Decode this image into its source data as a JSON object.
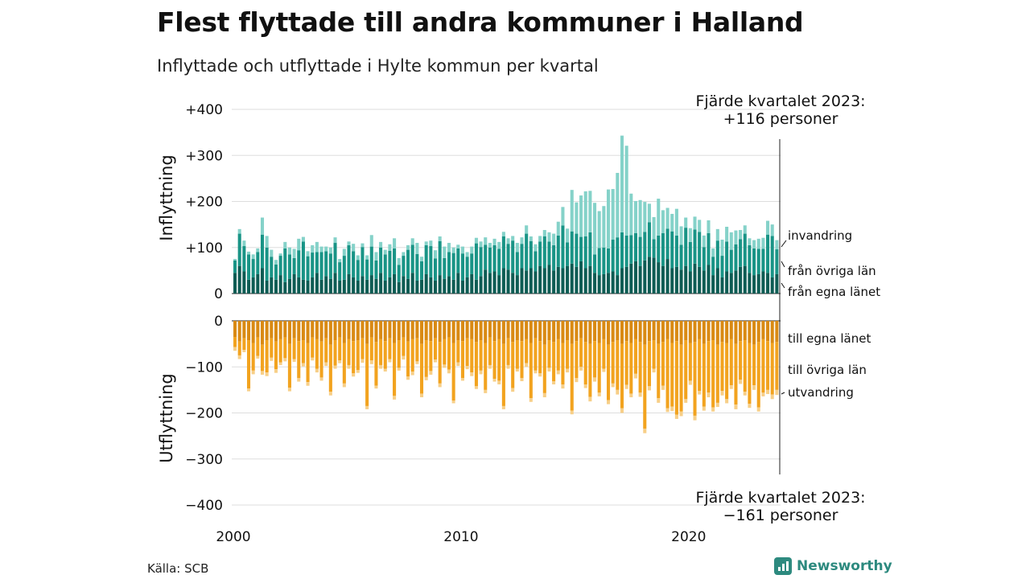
{
  "title": "Flest flyttade till andra kommuner i Halland",
  "subtitle": "Inflyttade och utflyttade i Hylte kommun per kvartal",
  "source": "Källa: SCB",
  "brand": "Newsworthy",
  "colors": {
    "in_egna": "#0e5c54",
    "in_ovriga": "#199486",
    "in_invandring": "#85d2c9",
    "ut_egna": "#d98a14",
    "ut_ovriga": "#f2a31f",
    "ut_utvandring": "#f7cf88",
    "brand": "#2d8a7f"
  },
  "chart_data": {
    "type": "bar",
    "stacked": true,
    "x_range": [
      2000,
      2024
    ],
    "x_ticks": [
      "2000",
      "2010",
      "2020"
    ],
    "y_label_top": "Inflyttning",
    "y_label_bottom": "Utflyttning",
    "y_ticks_top": [
      "+400",
      "+300",
      "+200",
      "+100",
      "0"
    ],
    "y_ticks_bottom": [
      "0",
      "−100",
      "−200",
      "−300",
      "−400"
    ],
    "ylim_top": [
      0,
      400
    ],
    "ylim_bottom": [
      -400,
      0
    ],
    "annotation_top": [
      "Fjärde kvartalet 2023:",
      "+116 personer"
    ],
    "annotation_bottom": [
      "Fjärde kvartalet 2023:",
      "−161 personer"
    ],
    "in_series": [
      {
        "name": "från egna länet",
        "key": "in_egna"
      },
      {
        "name": "från övriga län",
        "key": "in_ovriga"
      },
      {
        "name": "invandring",
        "key": "in_invandring"
      }
    ],
    "out_series": [
      {
        "name": "till egna länet",
        "key": "ut_egna"
      },
      {
        "name": "till övriga län",
        "key": "ut_ovriga"
      },
      {
        "name": "utvandring",
        "key": "ut_utvandring"
      }
    ],
    "in_egna_values": [
      45,
      60,
      48,
      30,
      35,
      42,
      55,
      28,
      35,
      30,
      40,
      25,
      32,
      42,
      35,
      30,
      28,
      35,
      45,
      30,
      38,
      32,
      45,
      28,
      30,
      42,
      35,
      28,
      38,
      30,
      40,
      32,
      45,
      28,
      35,
      42,
      25,
      38,
      32,
      45,
      28,
      30,
      42,
      35,
      28,
      40,
      32,
      38,
      30,
      45,
      28,
      35,
      42,
      30,
      38,
      52,
      45,
      48,
      40,
      55,
      52,
      45,
      40,
      55,
      50,
      55,
      48,
      60,
      55,
      62,
      50,
      58,
      55,
      60,
      65,
      58,
      70,
      55,
      60,
      45,
      40,
      42,
      45,
      48,
      40,
      55,
      58,
      65,
      70,
      60,
      72,
      80,
      78,
      68,
      60,
      75,
      55,
      58,
      52,
      60,
      48,
      65,
      58,
      50,
      62,
      40,
      55,
      35,
      48,
      45,
      50,
      58,
      60,
      45,
      40,
      42,
      48,
      45,
      35,
      42
    ],
    "in_ovriga_values": [
      27,
      70,
      55,
      55,
      40,
      48,
      73,
      72,
      45,
      33,
      42,
      73,
      53,
      35,
      59,
      83,
      53,
      54,
      45,
      60,
      54,
      55,
      65,
      40,
      52,
      63,
      57,
      45,
      63,
      44,
      62,
      40,
      55,
      57,
      58,
      56,
      37,
      44,
      63,
      61,
      58,
      40,
      63,
      68,
      48,
      74,
      45,
      52,
      58,
      53,
      59,
      45,
      45,
      79,
      63,
      54,
      55,
      57,
      57,
      69,
      56,
      70,
      50,
      53,
      80,
      59,
      44,
      53,
      69,
      51,
      55,
      68,
      93,
      51,
      70,
      72,
      53,
      69,
      73,
      40,
      59,
      58,
      53,
      69,
      82,
      78,
      68,
      62,
      61,
      63,
      62,
      75,
      40,
      58,
      71,
      66,
      80,
      68,
      54,
      83,
      64,
      74,
      76,
      51,
      69,
      40,
      60,
      47,
      65,
      50,
      57,
      60,
      70,
      60,
      58,
      55,
      49,
      83,
      90,
      54
    ],
    "in_inv_values": [
      3,
      10,
      12,
      6,
      10,
      8,
      37,
      25,
      15,
      10,
      5,
      14,
      15,
      20,
      25,
      10,
      11,
      16,
      22,
      12,
      10,
      13,
      12,
      7,
      15,
      8,
      16,
      10,
      8,
      9,
      25,
      18,
      12,
      10,
      14,
      22,
      15,
      8,
      10,
      14,
      24,
      10,
      8,
      12,
      18,
      10,
      25,
      20,
      12,
      8,
      15,
      10,
      15,
      12,
      12,
      16,
      10,
      14,
      15,
      10,
      12,
      10,
      20,
      14,
      18,
      10,
      15,
      12,
      14,
      20,
      25,
      30,
      40,
      30,
      90,
      68,
      90,
      98,
      90,
      112,
      80,
      90,
      128,
      110,
      140,
      210,
      195,
      90,
      70,
      80,
      65,
      40,
      48,
      80,
      50,
      45,
      38,
      58,
      40,
      22,
      30,
      28,
      26,
      25,
      28,
      18,
      25,
      35,
      32,
      38,
      30,
      20,
      18,
      15,
      18,
      22,
      24,
      30,
      25,
      20
    ],
    "out_egna_values": [
      35,
      45,
      38,
      42,
      48,
      36,
      52,
      42,
      38,
      45,
      40,
      36,
      50,
      38,
      44,
      42,
      48,
      36,
      40,
      45,
      38,
      52,
      42,
      36,
      48,
      40,
      44,
      42,
      38,
      50,
      36,
      46,
      40,
      44,
      38,
      48,
      42,
      36,
      45,
      40,
      38,
      50,
      42,
      44,
      38,
      46,
      40,
      36,
      48,
      42,
      44,
      38,
      40,
      46,
      42,
      48,
      36,
      44,
      40,
      50,
      38,
      46,
      42,
      44,
      40,
      48,
      38,
      44,
      52,
      42,
      46,
      40,
      48,
      42,
      50,
      44,
      38,
      46,
      50,
      44,
      48,
      40,
      52,
      46,
      42,
      50,
      44,
      48,
      40,
      46,
      52,
      44,
      42,
      50,
      46,
      40,
      48,
      44,
      52,
      42,
      48,
      46,
      40,
      50,
      44,
      42,
      52,
      46,
      48,
      40,
      50,
      44,
      42,
      48,
      52,
      46,
      40,
      44,
      48,
      46
    ],
    "out_ovriga_values": [
      22,
      30,
      25,
      105,
      60,
      40,
      57,
      70,
      42,
      60,
      50,
      45,
      95,
      45,
      80,
      50,
      85,
      44,
      64,
      78,
      52,
      102,
      55,
      50,
      88,
      56,
      70,
      65,
      45,
      135,
      50,
      95,
      56,
      60,
      45,
      115,
      60,
      40,
      76,
      70,
      50,
      108,
      80,
      65,
      46,
      90,
      55,
      70,
      125,
      48,
      80,
      60,
      72,
      96,
      66,
      102,
      60,
      82,
      90,
      135,
      58,
      100,
      62,
      80,
      52,
      120,
      70,
      70,
      105,
      60,
      85,
      68,
      90,
      62,
      145,
      80,
      62,
      92,
      115,
      79,
      108,
      64,
      120,
      90,
      108,
      140,
      95,
      110,
      75,
      110,
      182,
      98,
      62,
      118,
      95,
      150,
      138,
      160,
      145,
      128,
      82,
      160,
      112,
      136,
      112,
      146,
      126,
      106,
      122,
      100,
      132,
      84,
      112,
      132,
      88,
      142,
      116,
      106,
      112,
      104
    ],
    "out_utv_values": [
      8,
      8,
      5,
      6,
      8,
      6,
      8,
      8,
      7,
      8,
      6,
      7,
      8,
      6,
      8,
      7,
      8,
      6,
      8,
      7,
      8,
      8,
      7,
      6,
      8,
      8,
      7,
      6,
      8,
      7,
      8,
      6,
      8,
      6,
      7,
      8,
      6,
      8,
      7,
      8,
      6,
      8,
      7,
      8,
      6,
      8,
      7,
      8,
      6,
      8,
      6,
      7,
      8,
      6,
      8,
      7,
      8,
      6,
      8,
      7,
      8,
      8,
      6,
      7,
      8,
      8,
      6,
      7,
      9,
      8,
      7,
      8,
      9,
      8,
      8,
      9,
      8,
      8,
      10,
      9,
      8,
      7,
      9,
      8,
      10,
      10,
      9,
      8,
      10,
      9,
      10,
      9,
      8,
      10,
      9,
      8,
      10,
      9,
      10,
      8,
      9,
      10,
      8,
      9,
      10,
      9,
      9,
      10,
      9,
      8,
      10,
      9,
      8,
      9,
      10,
      9,
      8,
      9,
      10,
      11
    ]
  }
}
